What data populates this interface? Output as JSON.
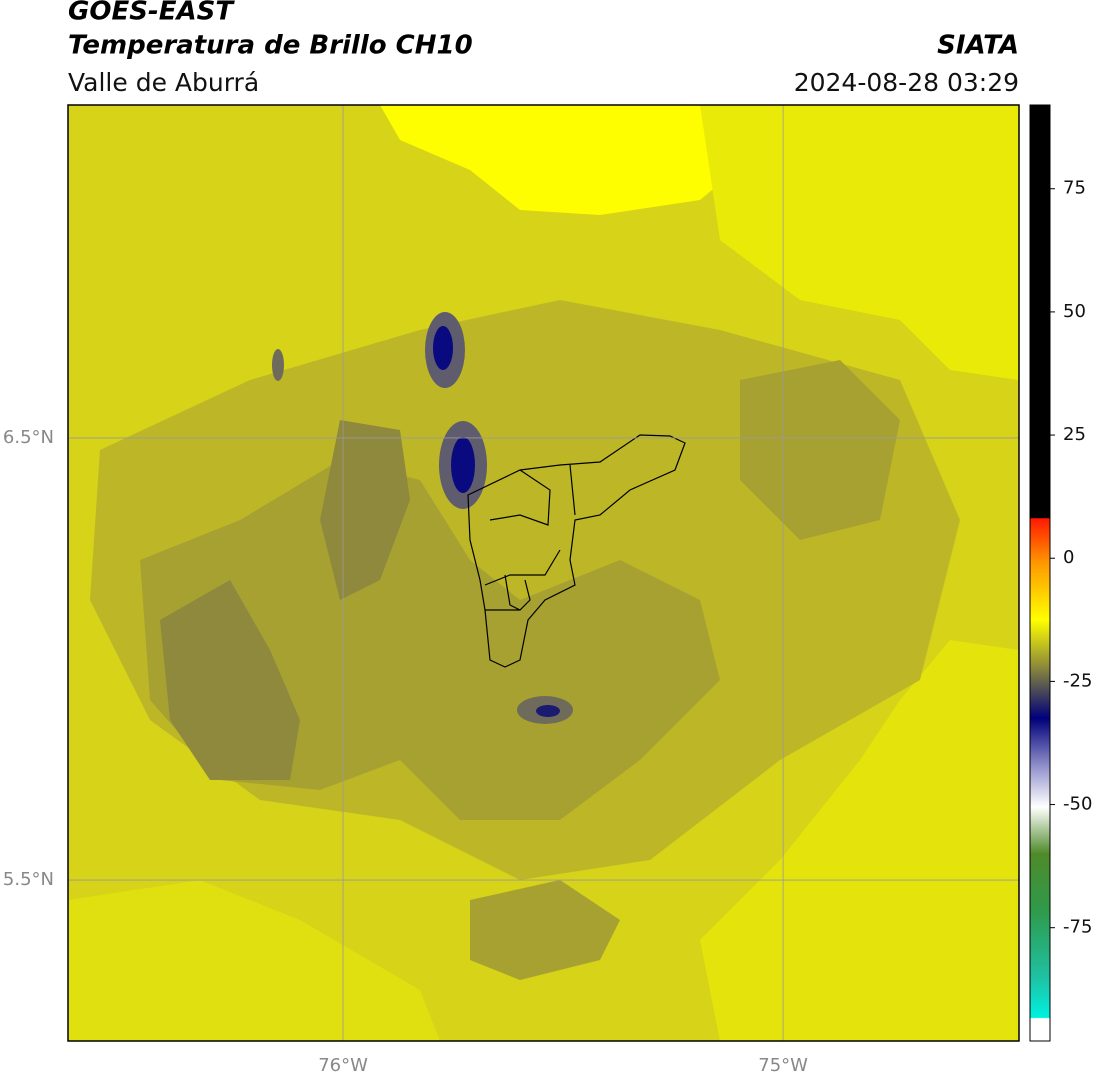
{
  "header": {
    "title": "GOES-EAST",
    "subtitle": "Temperatura de Brillo CH10",
    "region": "Valle de Aburrá",
    "source": "SIATA",
    "datetime": "2024-08-28 03:29"
  },
  "map": {
    "xlim": [
      -76.625,
      -74.464
    ],
    "ylim": [
      5.136,
      7.253
    ],
    "xticks": [
      {
        "value": -76,
        "label": "76°W"
      },
      {
        "value": -75,
        "label": "75°W"
      }
    ],
    "yticks": [
      {
        "value": 6.5,
        "label": "6.5°N"
      },
      {
        "value": 5.5,
        "label": "5.5°N"
      }
    ],
    "grid": true
  },
  "colorbar": {
    "clim": [
      -98,
      92
    ],
    "ticks": [
      75,
      50,
      25,
      0,
      -25,
      -50,
      -75
    ]
  }
}
